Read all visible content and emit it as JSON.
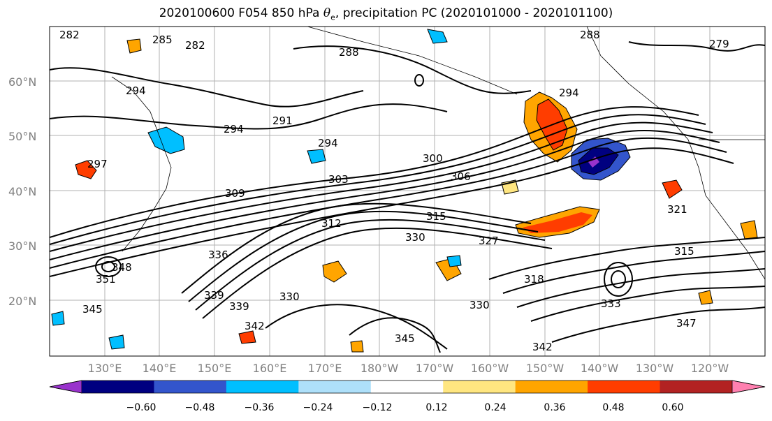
{
  "title": {
    "main": "2020100600 F054 850 hPa ",
    "theta": "θ",
    "sub": "e",
    "rest": ", precipitation PC (2020101000 - 2020101100)"
  },
  "map": {
    "lat_labels": [
      "60°N",
      "50°N",
      "40°N",
      "30°N",
      "20°N"
    ],
    "lon_labels": [
      "130°E",
      "140°E",
      "150°E",
      "160°E",
      "170°E",
      "180°W",
      "170°W",
      "160°W",
      "150°W",
      "140°W",
      "130°W",
      "120°W"
    ],
    "contour_labels": [
      "282",
      "285",
      "282",
      "288",
      "288",
      "279",
      "294",
      "291",
      "294",
      "294",
      "294",
      "297",
      "300",
      "303",
      "306",
      "309",
      "312",
      "315",
      "318",
      "321",
      "327",
      "330",
      "330",
      "333",
      "336",
      "339",
      "342",
      "342",
      "345",
      "347",
      "348",
      "351",
      "315",
      "330",
      "339",
      "345"
    ]
  },
  "colorbar": {
    "ticks": [
      "−0.60",
      "−0.48",
      "−0.36",
      "−0.24",
      "−0.12",
      "0.12",
      "0.24",
      "0.36",
      "0.48",
      "0.60"
    ],
    "colors": [
      "#9933cc",
      "#000080",
      "#3355cc",
      "#00bfff",
      "#aee0fa",
      "#ffffff",
      "#ffe680",
      "#ffa500",
      "#ff3d00",
      "#b22222",
      "#ff80b0"
    ]
  }
}
